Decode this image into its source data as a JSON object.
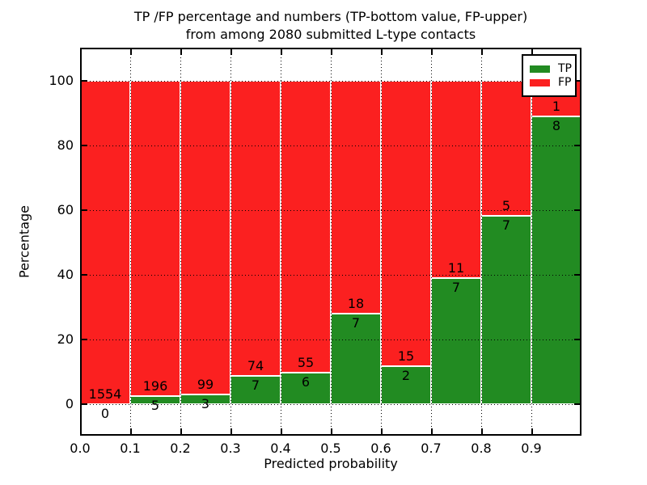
{
  "title": {
    "line1": "TP /FP percentage and numbers (TP-bottom value, FP-upper)",
    "line2": "from among 2080 submitted L-type contacts"
  },
  "axes": {
    "ylabel": "Percentage",
    "xlabel": "Predicted probability",
    "y_ticks": [
      0,
      20,
      40,
      60,
      80,
      100
    ],
    "x_tick_labels": [
      "0.0",
      "0.1",
      "0.2",
      "0.3",
      "0.4",
      "0.5",
      "0.6",
      "0.7",
      "0.8",
      "0.9"
    ],
    "ylim": [
      -10,
      110
    ],
    "xlim": [
      0.0,
      1.0
    ],
    "grid": "dotted black, drawn over bars"
  },
  "legend": {
    "position": "upper right",
    "items": [
      {
        "label": "TP",
        "color": "#228b22"
      },
      {
        "label": "FP",
        "color": "#fb2020"
      }
    ]
  },
  "colors": {
    "tp": "#228b22",
    "fp": "#fb2020",
    "bar_edge": "#ffffff",
    "grid": "#000000",
    "text": "#000000"
  },
  "chart_data": {
    "type": "bar",
    "stacked": true,
    "normalized_to_percent": 100,
    "title": "TP /FP percentage and numbers (TP-bottom value, FP-upper) from among 2080 submitted L-type contacts",
    "xlabel": "Predicted probability",
    "ylabel": "Percentage",
    "bin_width": 0.1,
    "bin_starts": [
      0.0,
      0.1,
      0.2,
      0.3,
      0.4,
      0.5,
      0.6,
      0.7,
      0.8,
      0.9
    ],
    "series": [
      {
        "name": "TP",
        "counts": [
          0,
          5,
          3,
          7,
          6,
          7,
          2,
          7,
          7,
          8
        ]
      },
      {
        "name": "FP",
        "counts": [
          1554,
          196,
          99,
          74,
          55,
          18,
          15,
          11,
          5,
          1
        ]
      }
    ],
    "tp_percent": [
      0.0,
      2.49,
      2.94,
      8.64,
      9.84,
      28.0,
      11.76,
      38.89,
      58.33,
      88.89
    ],
    "fp_percent": [
      100.0,
      97.51,
      97.06,
      91.36,
      90.16,
      72.0,
      88.24,
      61.11,
      41.67,
      11.11
    ],
    "total_contacts": 2080,
    "label_convention": "TP count below segment boundary, FP count above segment boundary"
  }
}
